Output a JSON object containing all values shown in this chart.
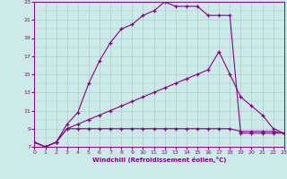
{
  "xlabel": "Windchill (Refroidissement éolien,°C)",
  "bg_color": "#cceae8",
  "line_color": "#880088",
  "grid_color": "#aacccc",
  "xmin": 0,
  "xmax": 23,
  "ymin": 7,
  "ymax": 23,
  "yticks": [
    7,
    9,
    11,
    13,
    15,
    17,
    19,
    21,
    23
  ],
  "xticks": [
    0,
    1,
    2,
    3,
    4,
    5,
    6,
    7,
    8,
    9,
    10,
    11,
    12,
    13,
    14,
    15,
    16,
    17,
    18,
    19,
    20,
    21,
    22,
    23
  ],
  "line1_x": [
    0,
    1,
    2,
    3,
    4,
    5,
    6,
    7,
    8,
    9,
    10,
    11,
    12,
    13,
    14,
    15,
    16,
    17,
    18,
    19,
    20,
    21,
    22,
    23
  ],
  "line1_y": [
    7.5,
    7.0,
    7.5,
    9.5,
    10.8,
    14.0,
    16.5,
    18.5,
    20.0,
    20.5,
    21.5,
    22.0,
    23.0,
    22.5,
    22.5,
    22.5,
    21.5,
    21.5,
    21.5,
    8.5,
    8.5,
    8.5,
    8.5,
    8.5
  ],
  "line2_x": [
    0,
    1,
    2,
    3,
    4,
    5,
    6,
    7,
    8,
    9,
    10,
    11,
    12,
    13,
    14,
    15,
    16,
    17,
    18,
    19,
    20,
    21,
    22,
    23
  ],
  "line2_y": [
    7.5,
    7.0,
    7.5,
    9.0,
    9.0,
    9.0,
    9.0,
    9.0,
    9.0,
    9.0,
    9.0,
    9.0,
    9.0,
    9.0,
    9.0,
    9.0,
    9.0,
    9.0,
    9.0,
    8.7,
    8.7,
    8.7,
    8.7,
    8.5
  ],
  "line3_x": [
    0,
    1,
    2,
    3,
    4,
    5,
    6,
    7,
    8,
    9,
    10,
    11,
    12,
    13,
    14,
    15,
    16,
    17,
    18,
    19,
    20,
    21,
    22,
    23
  ],
  "line3_y": [
    7.5,
    7.0,
    7.5,
    9.0,
    9.5,
    10.0,
    10.5,
    11.0,
    11.5,
    12.0,
    12.5,
    13.0,
    13.5,
    14.0,
    14.5,
    15.0,
    15.5,
    17.5,
    15.0,
    12.5,
    11.5,
    10.5,
    9.0,
    8.5
  ]
}
